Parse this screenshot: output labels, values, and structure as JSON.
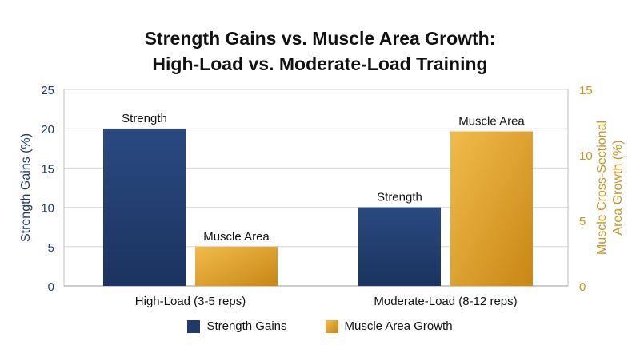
{
  "chart_data": {
    "type": "bar",
    "title_line1": "Strength Gains vs. Muscle Area Growth:",
    "title_line2": "High-Load vs. Moderate-Load Training",
    "categories": [
      "High-Load (3-5 reps)",
      "Moderate-Load (8-12 reps)"
    ],
    "series": [
      {
        "name": "Strength Gains",
        "axis": "left",
        "values": [
          20,
          10
        ],
        "bar_label": "Strength",
        "color": "#1f3a68"
      },
      {
        "name": "Muscle Area Growth",
        "axis": "right",
        "values": [
          3,
          11.8
        ],
        "bar_label": "Muscle Area",
        "color": "#e0a12a"
      }
    ],
    "ylabel_left": "Strength Gains (%)",
    "ylabel_right_line1": "Muscle Cross-Sectional",
    "ylabel_right_line2": "Area Growth (%)",
    "ylim_left": [
      0,
      25
    ],
    "yticks_left": [
      0,
      5,
      10,
      15,
      20,
      25
    ],
    "ylim_right": [
      0,
      15
    ],
    "yticks_right": [
      0,
      5,
      10,
      15
    ],
    "grid": true,
    "legend_position": "bottom-center",
    "left_axis_color": "#1f3a68",
    "right_axis_color": "#c8961e"
  }
}
